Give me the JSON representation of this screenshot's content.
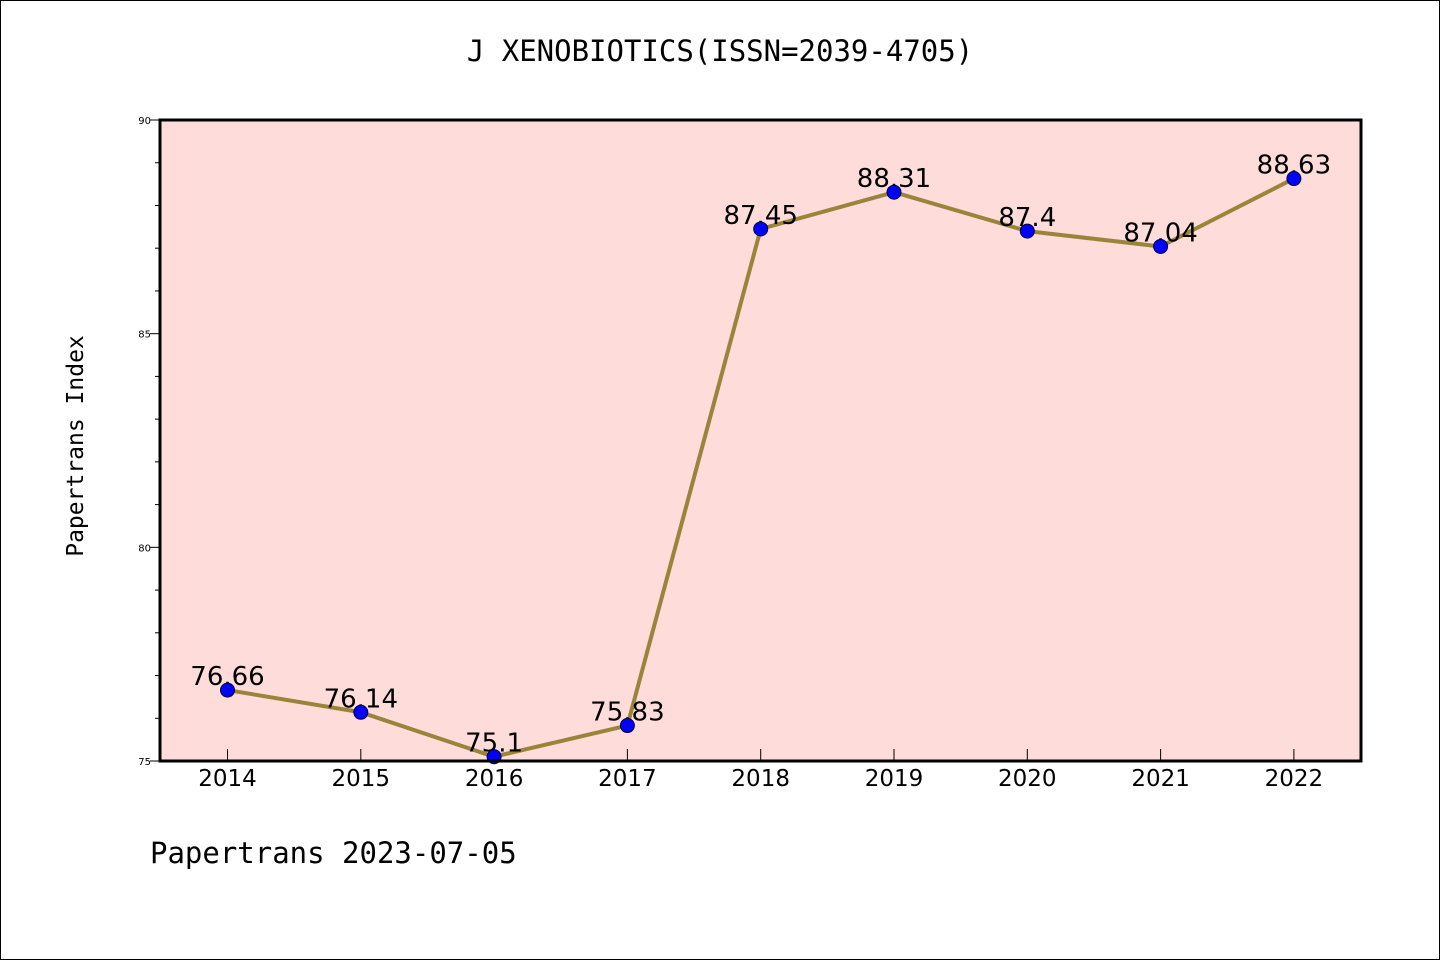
{
  "chart_data": {
    "type": "line",
    "title": "J XENOBIOTICS(ISSN=2039-4705)",
    "xlabel": "",
    "ylabel": "Papertrans Index",
    "categories": [
      "2014",
      "2015",
      "2016",
      "2017",
      "2018",
      "2019",
      "2020",
      "2021",
      "2022"
    ],
    "values": [
      76.66,
      76.14,
      75.1,
      75.83,
      87.45,
      88.31,
      87.4,
      87.04,
      88.63
    ],
    "data_labels": [
      "76.66",
      "76.14",
      "75.1",
      "75.83",
      "87.45",
      "88.31",
      "87.4",
      "87.04",
      "88.63"
    ],
    "ylim": [
      75,
      90
    ],
    "yticks": [
      "75",
      "80",
      "85",
      "90"
    ],
    "grid": false,
    "colors": {
      "background": "#fddcda",
      "line": "#9a8439",
      "marker": "#0000ff"
    }
  },
  "footer": "Papertrans 2023-07-05"
}
